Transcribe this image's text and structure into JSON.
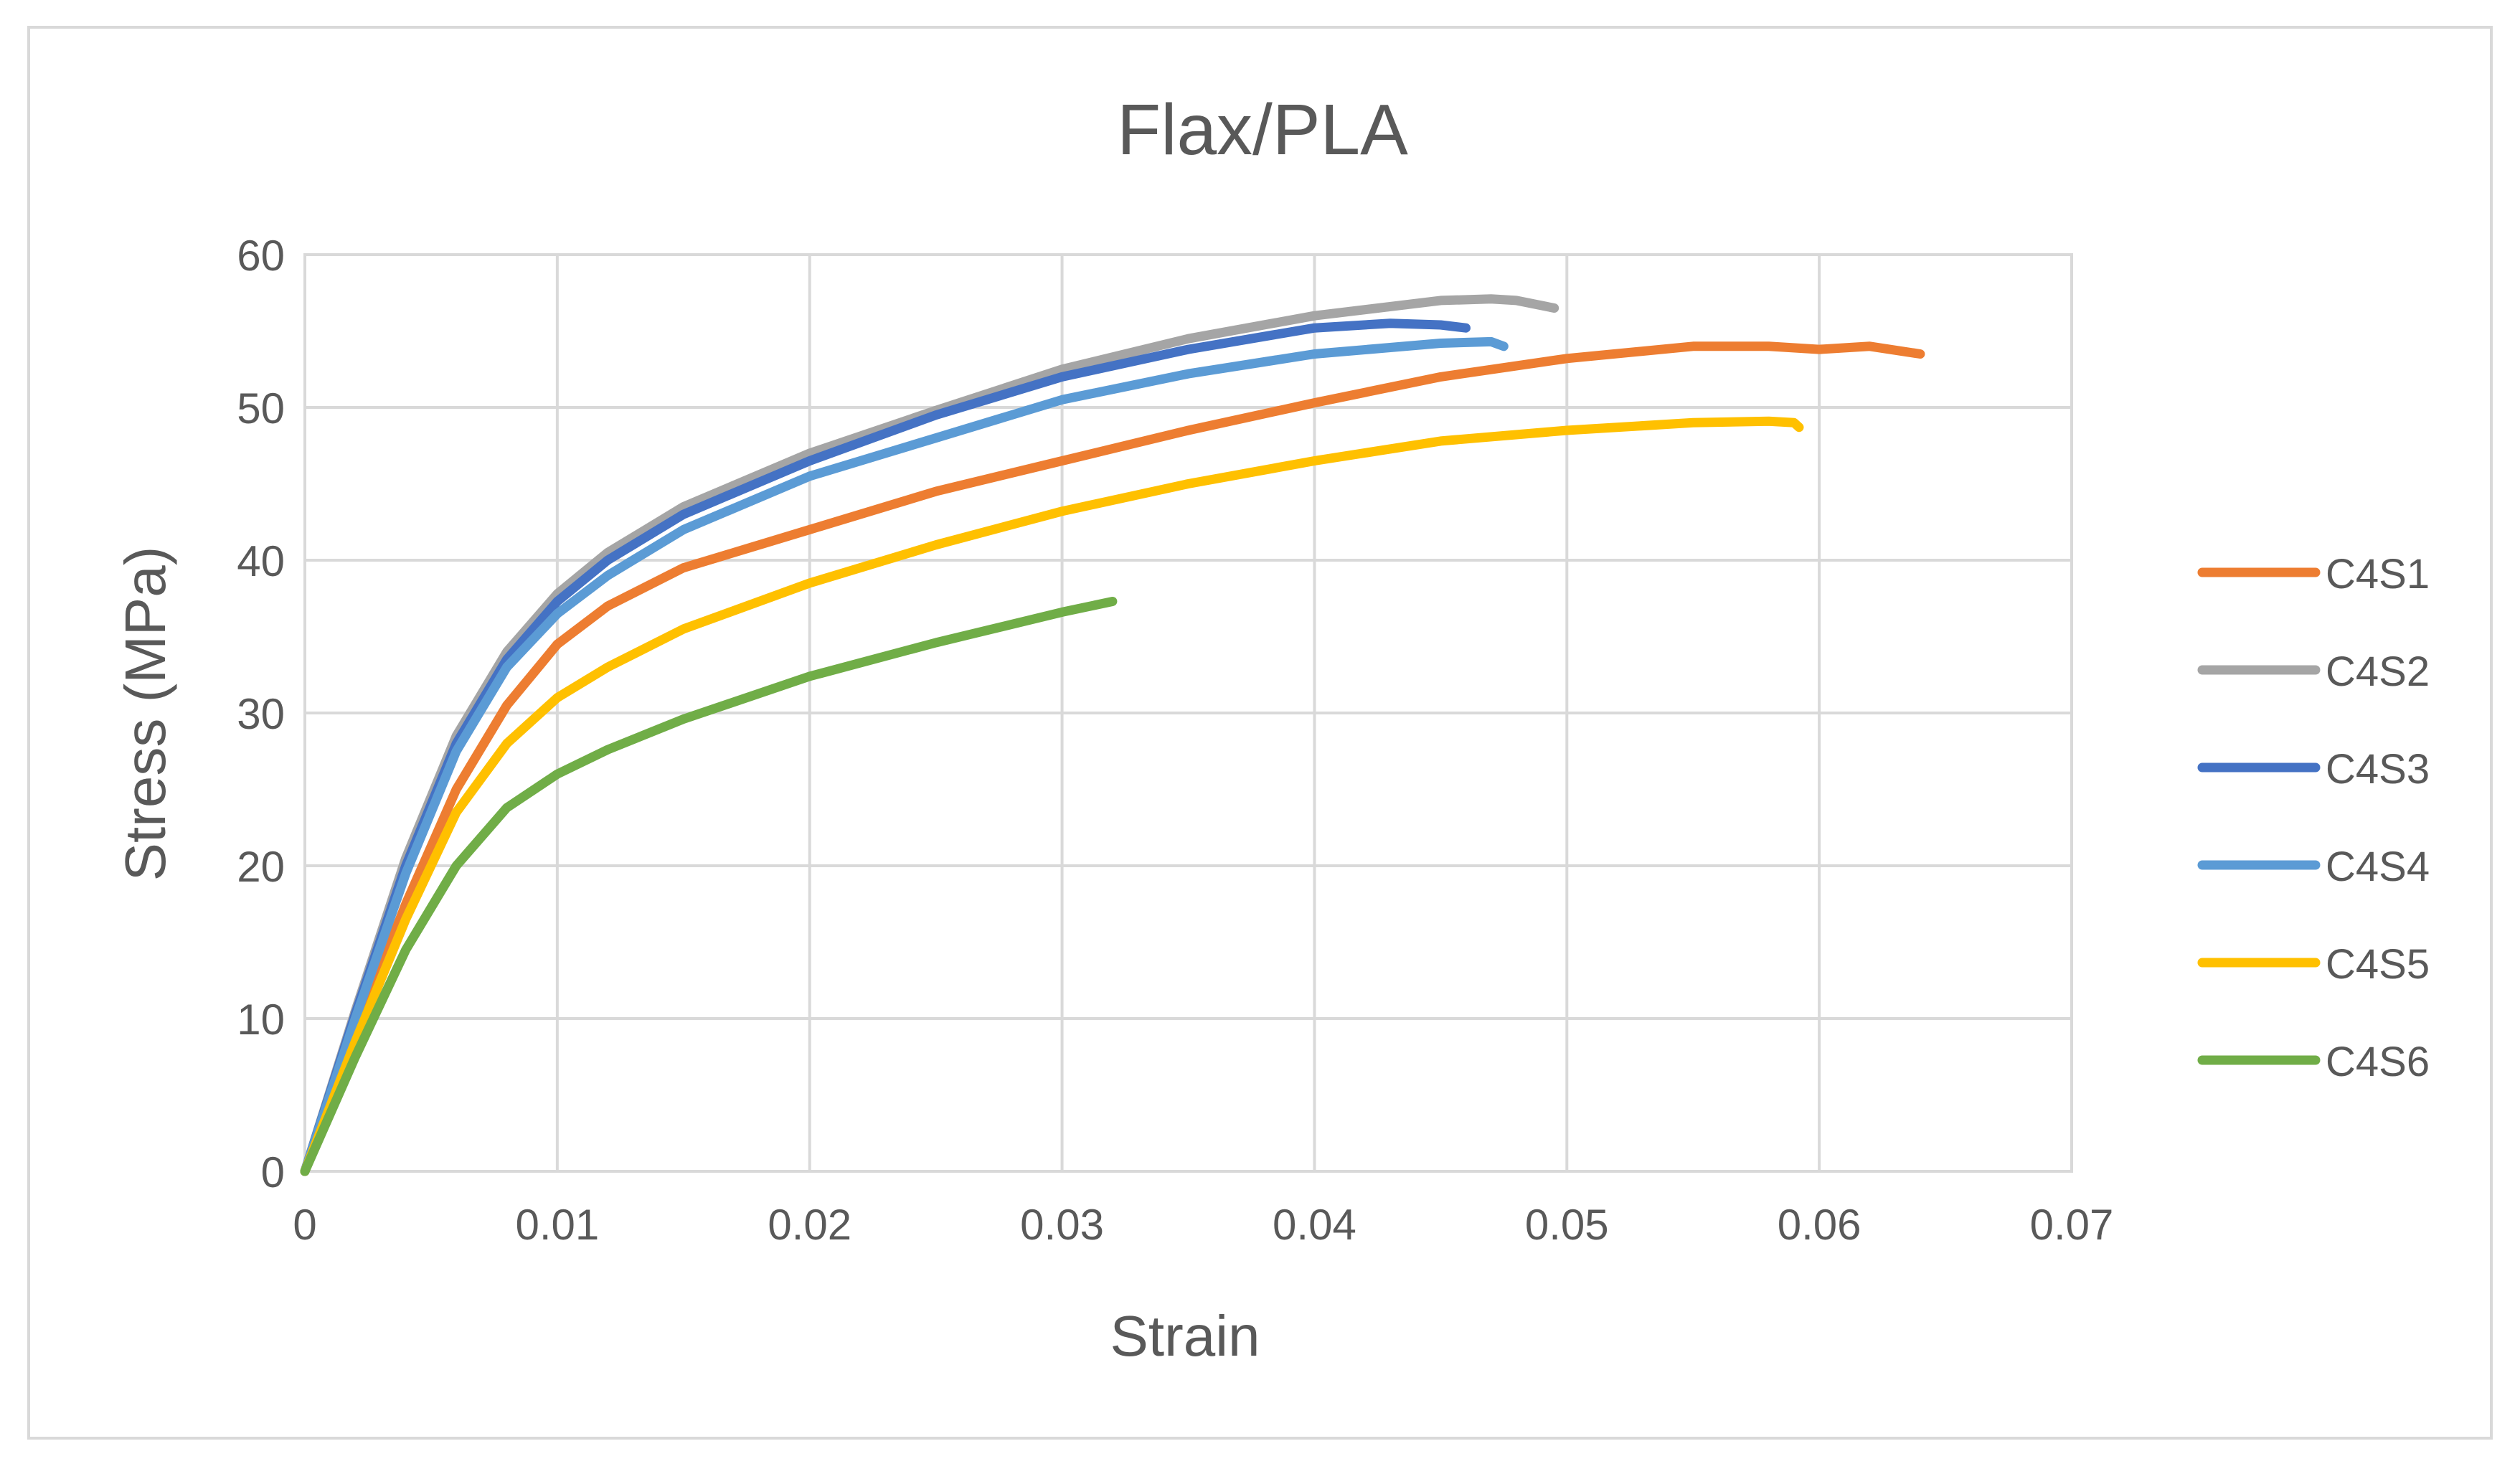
{
  "chart_data": {
    "type": "line",
    "title": "Flax/PLA",
    "xlabel": "Strain",
    "ylabel": "Stress (MPa)",
    "xlim": [
      0,
      0.07
    ],
    "ylim": [
      0,
      60
    ],
    "xticks": [
      0,
      0.01,
      0.02,
      0.03,
      0.04,
      0.05,
      0.06,
      0.07
    ],
    "xtick_labels": [
      "0",
      "0.01",
      "0.02",
      "0.03",
      "0.04",
      "0.05",
      "0.06",
      "0.07"
    ],
    "yticks": [
      0,
      10,
      20,
      30,
      40,
      50,
      60
    ],
    "ytick_labels": [
      "0",
      "10",
      "20",
      "30",
      "40",
      "50",
      "60"
    ],
    "grid": true,
    "legend_position": "right",
    "series": [
      {
        "name": "C4S1",
        "color": "#ED7D31",
        "x": [
          0,
          0.002,
          0.004,
          0.006,
          0.008,
          0.01,
          0.012,
          0.015,
          0.02,
          0.025,
          0.03,
          0.035,
          0.04,
          0.045,
          0.05,
          0.055,
          0.058,
          0.06,
          0.062,
          0.064
        ],
        "y": [
          0,
          9,
          17.5,
          25,
          30.5,
          34.5,
          37,
          39.5,
          42,
          44.5,
          46.5,
          48.5,
          50.3,
          52,
          53.2,
          54,
          54,
          53.8,
          54,
          53.5
        ]
      },
      {
        "name": "C4S2",
        "color": "#A5A5A5",
        "x": [
          0,
          0.002,
          0.004,
          0.006,
          0.008,
          0.01,
          0.012,
          0.015,
          0.02,
          0.025,
          0.03,
          0.035,
          0.04,
          0.045,
          0.047,
          0.048,
          0.0495
        ],
        "y": [
          0,
          10.5,
          20.5,
          28.5,
          34,
          37.8,
          40.5,
          43.5,
          47,
          49.8,
          52.5,
          54.5,
          56,
          57,
          57.1,
          57,
          56.5
        ]
      },
      {
        "name": "C4S3",
        "color": "#4472C4",
        "x": [
          0,
          0.002,
          0.004,
          0.006,
          0.008,
          0.01,
          0.012,
          0.015,
          0.02,
          0.025,
          0.03,
          0.035,
          0.04,
          0.043,
          0.045,
          0.046
        ],
        "y": [
          0,
          10.3,
          20,
          28,
          33.5,
          37.3,
          40,
          43,
          46.5,
          49.5,
          52,
          53.8,
          55.2,
          55.5,
          55.4,
          55.2
        ]
      },
      {
        "name": "C4S4",
        "color": "#5B9BD5",
        "x": [
          0,
          0.002,
          0.004,
          0.006,
          0.008,
          0.01,
          0.012,
          0.015,
          0.02,
          0.025,
          0.03,
          0.035,
          0.04,
          0.045,
          0.047,
          0.0475
        ],
        "y": [
          0,
          10,
          19.5,
          27.5,
          33,
          36.5,
          39,
          42,
          45.5,
          48,
          50.5,
          52.2,
          53.5,
          54.2,
          54.3,
          54
        ]
      },
      {
        "name": "C4S5",
        "color": "#FFC000",
        "x": [
          0,
          0.002,
          0.004,
          0.006,
          0.008,
          0.01,
          0.012,
          0.015,
          0.02,
          0.025,
          0.03,
          0.035,
          0.04,
          0.045,
          0.05,
          0.055,
          0.058,
          0.059,
          0.0592
        ],
        "y": [
          0,
          8.5,
          16.5,
          23.5,
          28,
          31,
          33,
          35.5,
          38.5,
          41,
          43.2,
          45,
          46.5,
          47.8,
          48.5,
          49,
          49.1,
          49,
          48.7
        ]
      },
      {
        "name": "C4S6",
        "color": "#70AD47",
        "x": [
          0,
          0.002,
          0.004,
          0.006,
          0.008,
          0.01,
          0.012,
          0.015,
          0.02,
          0.025,
          0.03,
          0.032
        ],
        "y": [
          0,
          7.5,
          14.5,
          20,
          23.8,
          26,
          27.6,
          29.6,
          32.4,
          34.6,
          36.6,
          37.3
        ]
      }
    ]
  }
}
